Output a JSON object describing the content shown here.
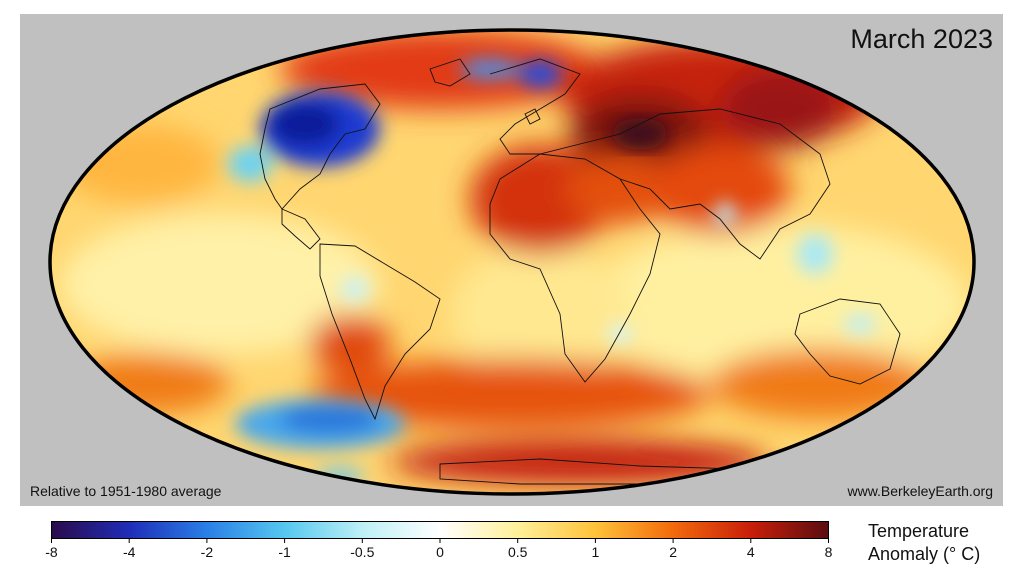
{
  "map": {
    "title": "March 2023",
    "baseline_caption": "Relative to 1951-1980 average",
    "source": "www.BerkeleyEarth.org",
    "projection": "Mollweide (equal-area, elliptical)",
    "background_color": "#c0c0c0",
    "ocean_land_fill": "temperature anomaly heat map",
    "notable_anomalies": [
      {
        "region": "Western North America",
        "sign": "cold"
      },
      {
        "region": "Scandinavia",
        "sign": "cold"
      },
      {
        "region": "Central Asia / Siberia",
        "sign": "warm"
      },
      {
        "region": "North Africa",
        "sign": "warm"
      },
      {
        "region": "Antarctic coast",
        "sign": "warm"
      },
      {
        "region": "South Pacific",
        "sign": "cold"
      }
    ]
  },
  "legend": {
    "title_line1": "Temperature",
    "title_line2": "Anomaly (° C)",
    "ticks": [
      "-8",
      "-4",
      "-2",
      "-1",
      "-0.5",
      "0",
      "0.5",
      "1",
      "2",
      "4",
      "8"
    ],
    "colors": [
      "#2a0b4a",
      "#1f2db8",
      "#2a7fe6",
      "#56c7ef",
      "#bdf0f6",
      "#ffffff",
      "#fff09a",
      "#ffc23a",
      "#f26a0c",
      "#c81e0a",
      "#5a0d10"
    ]
  }
}
